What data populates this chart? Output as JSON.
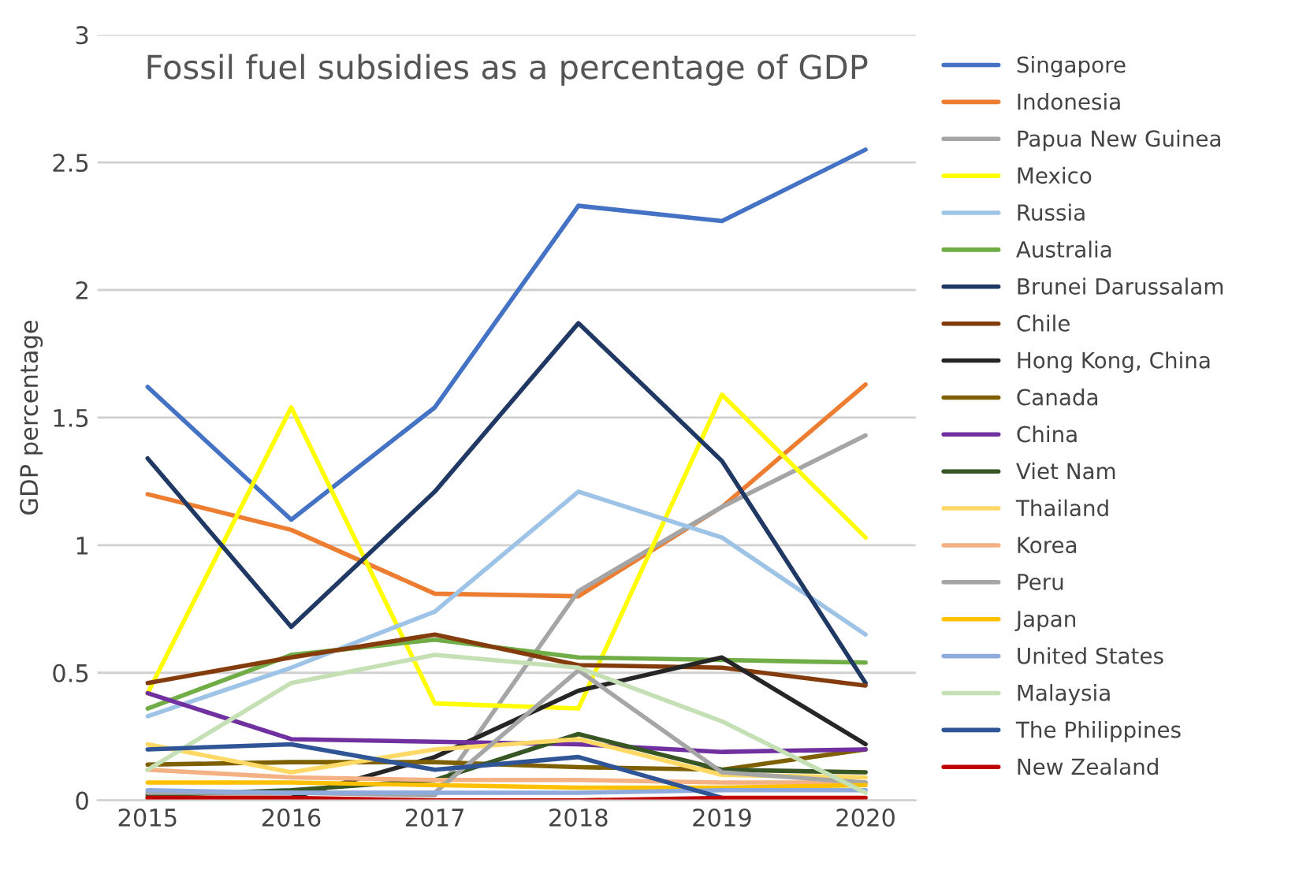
{
  "chart_data": {
    "type": "line",
    "title": "Fossil fuel subsidies as a percentage of GDP",
    "ylabel": "GDP percentage",
    "categories": [
      "2015",
      "2016",
      "2017",
      "2018",
      "2019",
      "2020"
    ],
    "ylim": [
      0,
      3
    ],
    "yticks": [
      0,
      0.5,
      1,
      1.5,
      2,
      2.5,
      3
    ],
    "grid": "y",
    "legend": "right",
    "marker": "none",
    "line_style": "solid",
    "series": [
      {
        "name": "Singapore",
        "color": "#4472c4",
        "values": [
          1.62,
          1.1,
          1.54,
          2.33,
          2.27,
          2.55
        ]
      },
      {
        "name": "Indonesia",
        "color": "#ed7d31",
        "values": [
          1.2,
          1.06,
          0.81,
          0.8,
          1.15,
          1.63
        ]
      },
      {
        "name": "Papua New Guinea",
        "color": "#a5a5a5",
        "values": [
          0.03,
          0.03,
          0.02,
          0.82,
          1.15,
          1.43
        ]
      },
      {
        "name": "Mexico",
        "color": "#ffff00",
        "values": [
          0.42,
          1.54,
          0.38,
          0.36,
          1.59,
          1.03
        ]
      },
      {
        "name": "Russia",
        "color": "#9dc3e6",
        "values": [
          0.33,
          0.52,
          0.74,
          1.21,
          1.03,
          0.65
        ]
      },
      {
        "name": "Australia",
        "color": "#70ad47",
        "values": [
          0.36,
          0.57,
          0.63,
          0.56,
          0.55,
          0.54
        ]
      },
      {
        "name": "Brunei Darussalam",
        "color": "#203864",
        "values": [
          1.34,
          0.68,
          1.21,
          1.87,
          1.33,
          0.46
        ]
      },
      {
        "name": "Chile",
        "color": "#843c0c",
        "values": [
          0.46,
          0.56,
          0.65,
          0.53,
          0.52,
          0.45
        ]
      },
      {
        "name": "Hong Kong, China",
        "color": "#262626",
        "values": [
          0.01,
          0.01,
          0.17,
          0.43,
          0.56,
          0.22
        ]
      },
      {
        "name": "Canada",
        "color": "#7f6000",
        "values": [
          0.14,
          0.15,
          0.15,
          0.13,
          0.12,
          0.2
        ]
      },
      {
        "name": "China",
        "color": "#7030a0",
        "values": [
          0.42,
          0.24,
          0.23,
          0.22,
          0.19,
          0.2
        ]
      },
      {
        "name": "Viet Nam",
        "color": "#375623",
        "values": [
          0.02,
          0.04,
          0.08,
          0.26,
          0.12,
          0.11
        ]
      },
      {
        "name": "Thailand",
        "color": "#ffd966",
        "values": [
          0.22,
          0.11,
          0.2,
          0.24,
          0.1,
          0.09
        ]
      },
      {
        "name": "Korea",
        "color": "#f4b183",
        "values": [
          0.12,
          0.09,
          0.08,
          0.08,
          0.07,
          0.07
        ]
      },
      {
        "name": "Peru",
        "color": "#a6a6a6",
        "values": [
          0.03,
          0.03,
          0.03,
          0.51,
          0.11,
          0.07
        ]
      },
      {
        "name": "Japan",
        "color": "#ffc000",
        "values": [
          0.07,
          0.07,
          0.06,
          0.05,
          0.05,
          0.06
        ]
      },
      {
        "name": "United States",
        "color": "#8faadc",
        "values": [
          0.04,
          0.03,
          0.03,
          0.03,
          0.04,
          0.04
        ]
      },
      {
        "name": "Malaysia",
        "color": "#c5e0b4",
        "values": [
          0.12,
          0.46,
          0.57,
          0.52,
          0.31,
          0.03
        ]
      },
      {
        "name": "The Philippines",
        "color": "#2f5597",
        "values": [
          0.2,
          0.22,
          0.12,
          0.17,
          0.01,
          null
        ]
      },
      {
        "name": "New Zealand",
        "color": "#c00000",
        "values": [
          0.01,
          0.01,
          0.0,
          0.0,
          0.01,
          0.01
        ]
      }
    ]
  }
}
